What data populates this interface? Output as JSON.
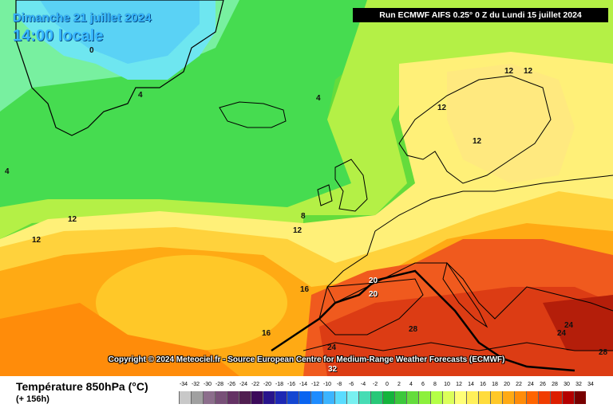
{
  "header": {
    "date_line": "Dimanche 21 juillet 2024",
    "time_line": "14:00 locale",
    "run_info": "Run ECMWF AIFS 0.25° 0 Z du Lundi 15 juillet 2024"
  },
  "copyright": "Copyright © 2024 Meteociel.fr - Source European Centre for Medium-Range Weather Forecasts (ECMWF)",
  "legend": {
    "title": "Température 850hPa (°C)",
    "subtitle": "(+ 156h)",
    "ticks": [
      "-34",
      "-32",
      "-30",
      "-28",
      "-26",
      "-24",
      "-22",
      "-20",
      "-18",
      "-16",
      "-14",
      "-12",
      "-10",
      "-8",
      "-6",
      "-4",
      "-2",
      "0",
      "2",
      "4",
      "6",
      "8",
      "10",
      "12",
      "14",
      "16",
      "18",
      "20",
      "22",
      "24",
      "26",
      "28",
      "30",
      "32",
      "34"
    ],
    "colors": [
      "#c8c8c8",
      "#a0a0a0",
      "#8c6e8c",
      "#785078",
      "#643264",
      "#501e50",
      "#3c0a5a",
      "#28148c",
      "#1e28b4",
      "#1446d2",
      "#0a64f0",
      "#1e8cff",
      "#3cb4ff",
      "#5adcff",
      "#78f0f0",
      "#46dcb4",
      "#28c878",
      "#14b43c",
      "#3cc83c",
      "#64dc3c",
      "#8cf03c",
      "#b4ff46",
      "#dcff5a",
      "#ffff78",
      "#fff05a",
      "#ffdc3c",
      "#ffc828",
      "#ffaa14",
      "#ff8c0a",
      "#ff6400",
      "#f03c00",
      "#dc1e00",
      "#b40000",
      "#780000"
    ]
  },
  "isotherm_labels": [
    {
      "text": "0"
    },
    {
      "text": "4"
    },
    {
      "text": "4"
    },
    {
      "text": "4"
    },
    {
      "text": "12"
    },
    {
      "text": "12"
    },
    {
      "text": "8"
    },
    {
      "text": "12"
    },
    {
      "text": "12"
    },
    {
      "text": "12"
    },
    {
      "text": "12"
    },
    {
      "text": "12"
    },
    {
      "text": "16"
    },
    {
      "text": "16"
    },
    {
      "text": "20"
    },
    {
      "text": "20"
    },
    {
      "text": "24"
    },
    {
      "text": "28"
    },
    {
      "text": "24"
    },
    {
      "text": "24"
    },
    {
      "text": "28"
    },
    {
      "text": "32"
    }
  ]
}
